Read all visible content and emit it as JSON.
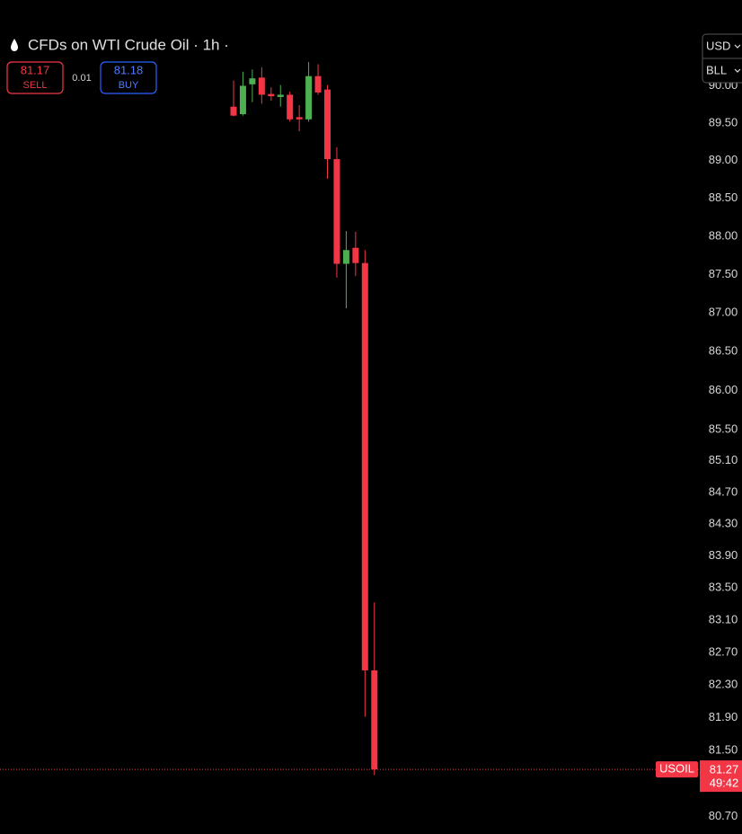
{
  "chart_data": {
    "type": "candlestick",
    "title": "CFDs on WTI Crude Oil · 1h ·",
    "sell_price": 81.17,
    "sell_label": "SELL",
    "spread": 0.01,
    "buy_price": 81.18,
    "buy_label": "BUY",
    "currency": "USD",
    "unit": "BLL",
    "symbol": "USOIL",
    "last_price": 81.27,
    "countdown": "49:42",
    "log_scale": true,
    "up_color": "#4caf50",
    "down_color": "#f23645",
    "categories": [
      null,
      null,
      null,
      null,
      null,
      null,
      null,
      null,
      null,
      null,
      null,
      null,
      null,
      null,
      null,
      null
    ],
    "open": [
      89.72,
      89.62,
      90.02,
      90.11,
      89.89,
      89.85,
      89.88,
      89.58,
      89.55,
      90.13,
      89.95,
      89.02,
      87.64,
      87.85,
      87.65,
      82.48
    ],
    "high": [
      90.07,
      90.19,
      90.22,
      90.25,
      89.98,
      90.01,
      89.92,
      89.74,
      90.32,
      90.29,
      90.01,
      89.18,
      88.07,
      88.06,
      87.82,
      83.32
    ],
    "low": [
      89.59,
      89.6,
      89.78,
      89.76,
      89.8,
      89.72,
      89.52,
      89.39,
      89.52,
      89.88,
      88.76,
      87.46,
      87.06,
      87.48,
      81.91,
      81.2
    ],
    "close": [
      89.6,
      90.0,
      90.1,
      89.88,
      89.86,
      89.88,
      89.55,
      89.55,
      90.13,
      89.91,
      89.02,
      87.64,
      87.82,
      87.65,
      82.48,
      81.27
    ],
    "ylim": [
      80.49,
      91.16
    ],
    "yticks": [
      {
        "value": 90.0,
        "label": "90.00"
      },
      {
        "value": 89.5,
        "label": "89.50"
      },
      {
        "value": 89.0,
        "label": "89.00"
      },
      {
        "value": 88.5,
        "label": "88.50"
      },
      {
        "value": 88.0,
        "label": "88.00"
      },
      {
        "value": 87.5,
        "label": "87.50"
      },
      {
        "value": 87.0,
        "label": "87.00"
      },
      {
        "value": 86.5,
        "label": "86.50"
      },
      {
        "value": 86.0,
        "label": "86.00"
      },
      {
        "value": 85.5,
        "label": "85.50"
      },
      {
        "value": 85.1,
        "label": "85.10"
      },
      {
        "value": 84.7,
        "label": "84.70"
      },
      {
        "value": 84.3,
        "label": "84.30"
      },
      {
        "value": 83.9,
        "label": "83.90"
      },
      {
        "value": 83.5,
        "label": "83.50"
      },
      {
        "value": 83.1,
        "label": "83.10"
      },
      {
        "value": 82.7,
        "label": "82.70"
      },
      {
        "value": 82.3,
        "label": "82.30"
      },
      {
        "value": 81.9,
        "label": "81.90"
      },
      {
        "value": 81.5,
        "label": "81.50"
      },
      {
        "value": 80.7,
        "label": "80.70"
      }
    ]
  }
}
